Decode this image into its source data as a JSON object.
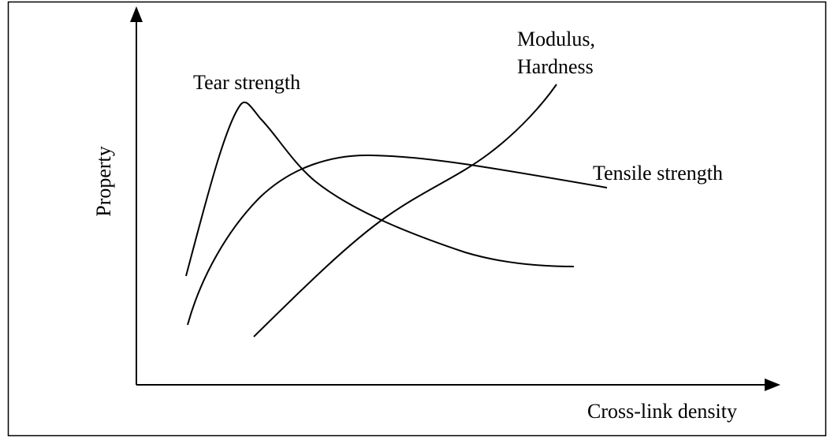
{
  "axes": {
    "y_label": "Property",
    "x_label": "Cross-link density"
  },
  "curves": [
    {
      "label": "Tear strength"
    },
    {
      "label_lines": [
        "Modulus,",
        "Hardness"
      ]
    },
    {
      "label": "Tensile strength"
    }
  ]
}
